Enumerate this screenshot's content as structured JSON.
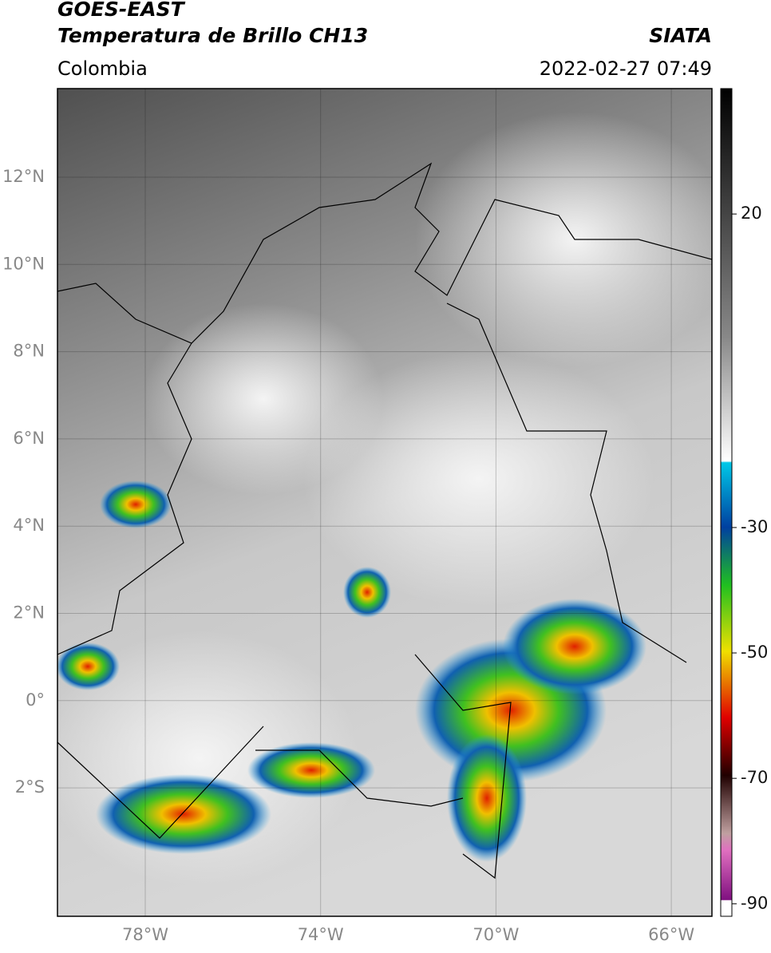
{
  "header": {
    "title": "GOES-EAST",
    "subtitle": "Temperatura de Brillo CH13",
    "source": "SIATA",
    "region": "Colombia",
    "datetime": "2022-02-27 07:49"
  },
  "map": {
    "lat_ticks": [
      "12°N",
      "10°N",
      "8°N",
      "6°N",
      "4°N",
      "2°N",
      "0°",
      "2°S"
    ],
    "lon_ticks": [
      "78°W",
      "74°W",
      "70°W",
      "66°W"
    ]
  },
  "colorbar": {
    "lim": [
      40,
      -92
    ],
    "ticks": [
      20,
      -30,
      -50,
      -70,
      -90
    ]
  }
}
